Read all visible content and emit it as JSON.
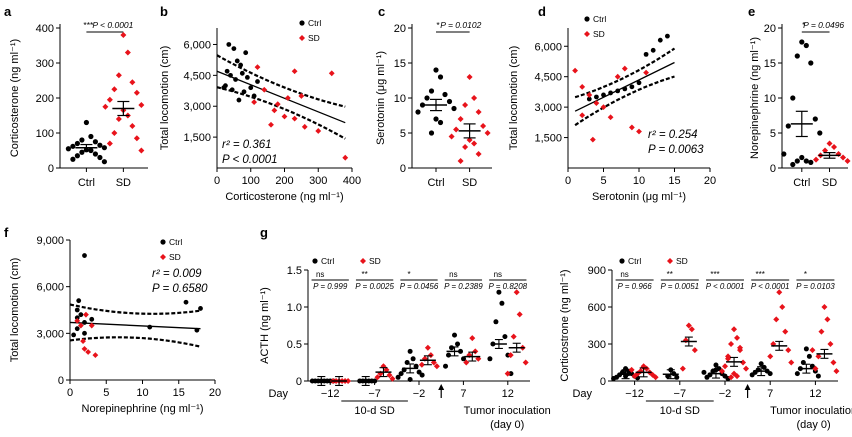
{
  "colors": {
    "ctrl": "#000000",
    "sd": "#e8131b",
    "ink": "#000000"
  },
  "chart_data": [
    {
      "panel": "a",
      "type": "scatter",
      "ylabel": "Corticosterone (ng ml⁻¹)",
      "categories": [
        "Ctrl",
        "SD"
      ],
      "yticks": [
        "0",
        "100",
        "200",
        "300",
        "400"
      ],
      "ylim": [
        0,
        400
      ],
      "stars": "***",
      "p": "P < 0.0001",
      "series": [
        {
          "name": "Ctrl",
          "mean": 58,
          "sem": 9,
          "values": [
            130,
            90,
            80,
            75,
            70,
            65,
            62,
            58,
            55,
            52,
            50,
            45,
            40,
            35,
            30,
            25,
            18
          ]
        },
        {
          "name": "SD",
          "mean": 170,
          "sem": 20,
          "values": [
            380,
            330,
            265,
            245,
            225,
            215,
            195,
            180,
            175,
            165,
            150,
            140,
            120,
            100,
            85,
            70,
            50
          ]
        }
      ]
    },
    {
      "panel": "b",
      "type": "scatter",
      "xlabel": "Corticosterone (ng ml⁻¹)",
      "ylabel": "Total locomotion (cm)",
      "xticks": [
        "0",
        "100",
        "200",
        "300",
        "400"
      ],
      "xlim": [
        0,
        400
      ],
      "yticks": [
        "1,500",
        "3,000",
        "4,500",
        "6,000"
      ],
      "ylim": [
        0,
        6800
      ],
      "legend": [
        "Ctrl",
        "SD"
      ],
      "stats": [
        "r² = 0.361",
        "P < 0.0001"
      ],
      "series": [
        {
          "name": "Ctrl",
          "points": [
            [
              35,
              6000
            ],
            [
              50,
              5800
            ],
            [
              60,
              5200
            ],
            [
              70,
              5000
            ],
            [
              30,
              4700
            ],
            [
              40,
              4500
            ],
            [
              55,
              4300
            ],
            [
              25,
              4000
            ],
            [
              45,
              3800
            ],
            [
              80,
              3700
            ],
            [
              90,
              4400
            ],
            [
              100,
              3900
            ],
            [
              65,
              3300
            ],
            [
              120,
              4200
            ],
            [
              85,
              5600
            ],
            [
              110,
              3500
            ],
            [
              20,
              3900
            ],
            [
              75,
              4600
            ]
          ]
        },
        {
          "name": "SD",
          "points": [
            [
              120,
              4900
            ],
            [
              230,
              4700
            ],
            [
              340,
              4600
            ],
            [
              140,
              3800
            ],
            [
              210,
              3400
            ],
            [
              250,
              3500
            ],
            [
              180,
              3100
            ],
            [
              170,
              2800
            ],
            [
              160,
              2100
            ],
            [
              260,
              2000
            ],
            [
              300,
              1800
            ],
            [
              380,
              500
            ],
            [
              200,
              2500
            ],
            [
              110,
              3200
            ],
            [
              230,
              2400
            ]
          ]
        }
      ],
      "fit": {
        "x": [
          0,
          380
        ],
        "y": [
          4700,
          2200
        ]
      }
    },
    {
      "panel": "c",
      "type": "scatter",
      "ylabel": "Serotonin (μg ml⁻¹)",
      "categories": [
        "Ctrl",
        "SD"
      ],
      "yticks": [
        "0",
        "5",
        "10",
        "15",
        "20"
      ],
      "ylim": [
        0,
        20
      ],
      "stars": "*",
      "p": "P = 0.0102",
      "series": [
        {
          "name": "Ctrl",
          "mean": 9,
          "sem": 0.8,
          "values": [
            14,
            13,
            11,
            10.5,
            10,
            9.5,
            9,
            8.5,
            8,
            7,
            6.5,
            5
          ]
        },
        {
          "name": "SD",
          "mean": 5.3,
          "sem": 1.0,
          "values": [
            13,
            10,
            9,
            8,
            7,
            6,
            5.5,
            5,
            4.5,
            4,
            3.5,
            3,
            2,
            1
          ]
        }
      ]
    },
    {
      "panel": "d",
      "type": "scatter",
      "xlabel": "Serotonin (μg ml⁻¹)",
      "ylabel": "Total locomotion (cm)",
      "xticks": [
        "0",
        "5",
        "10",
        "15",
        "20"
      ],
      "xlim": [
        0,
        20
      ],
      "yticks": [
        "1,500",
        "3,000",
        "4,500",
        "6,000"
      ],
      "ylim": [
        0,
        6900
      ],
      "legend": [
        "Ctrl",
        "SD"
      ],
      "stats": [
        "r² = 0.254",
        "P = 0.0063"
      ],
      "series": [
        {
          "name": "Ctrl",
          "points": [
            [
              14,
              6500
            ],
            [
              13,
              6300
            ],
            [
              12,
              5800
            ],
            [
              11,
              5600
            ],
            [
              10,
              4200
            ],
            [
              9,
              4000
            ],
            [
              8,
              3900
            ],
            [
              7,
              3800
            ],
            [
              6,
              3700
            ],
            [
              5,
              3600
            ],
            [
              4,
              3500
            ],
            [
              3,
              3400
            ]
          ]
        },
        {
          "name": "SD",
          "points": [
            [
              1,
              4800
            ],
            [
              2,
              4000
            ],
            [
              3,
              3600
            ],
            [
              4,
              3200
            ],
            [
              5,
              3000
            ],
            [
              6,
              2500
            ],
            [
              7,
              4500
            ],
            [
              8,
              4900
            ],
            [
              9,
              2000
            ],
            [
              10,
              1800
            ],
            [
              3.5,
              1400
            ],
            [
              2,
              2600
            ],
            [
              11,
              4700
            ]
          ]
        }
      ],
      "fit": {
        "x": [
          1,
          15
        ],
        "y": [
          2800,
          5200
        ]
      }
    },
    {
      "panel": "e",
      "type": "scatter",
      "ylabel": "Norepinephrine (ng ml⁻¹)",
      "categories": [
        "Ctrl",
        "SD"
      ],
      "yticks": [
        "0",
        "5",
        "10",
        "15",
        "20"
      ],
      "ylim": [
        0,
        20
      ],
      "stars": "*",
      "p": "P = 0.0496",
      "series": [
        {
          "name": "Ctrl",
          "mean": 6.3,
          "sem": 1.8,
          "values": [
            18,
            17.5,
            16,
            15,
            10,
            7,
            6,
            5,
            2,
            1.5,
            1,
            1,
            0.8,
            0.5
          ]
        },
        {
          "name": "SD",
          "mean": 1.8,
          "sem": 0.4,
          "values": [
            3.5,
            3,
            2.5,
            2,
            1.8,
            1.5,
            1.2,
            1
          ]
        }
      ]
    },
    {
      "panel": "f",
      "type": "scatter",
      "xlabel": "Norepinephrine (ng ml⁻¹)",
      "ylabel": "Total locomotion (cm)",
      "xticks": [
        "0",
        "5",
        "10",
        "15",
        "20"
      ],
      "xlim": [
        0,
        20
      ],
      "yticks": [
        "0",
        "3,000",
        "6,000",
        "9,000"
      ],
      "ylim": [
        0,
        9000
      ],
      "legend": [
        "Ctrl",
        "SD"
      ],
      "stats": [
        "r² = 0.009",
        "P = 0.6580"
      ],
      "series": [
        {
          "name": "Ctrl",
          "points": [
            [
              2,
              8000
            ],
            [
              1,
              4500
            ],
            [
              1.5,
              4200
            ],
            [
              2,
              3700
            ],
            [
              1,
              3300
            ],
            [
              2,
              3000
            ],
            [
              16,
              5000
            ],
            [
              18,
              4600
            ],
            [
              17.5,
              3200
            ],
            [
              11,
              3400
            ],
            [
              1,
              4000
            ],
            [
              3,
              3900
            ],
            [
              1.2,
              5100
            ],
            [
              0.5,
              2900
            ]
          ]
        },
        {
          "name": "SD",
          "points": [
            [
              1,
              3800
            ],
            [
              1.5,
              3500
            ],
            [
              2,
              2000
            ],
            [
              2.5,
              1800
            ],
            [
              3,
              3500
            ],
            [
              3.5,
              1600
            ],
            [
              1.8,
              2500
            ],
            [
              2.2,
              4200
            ]
          ]
        }
      ],
      "fit": {
        "x": [
          0,
          18
        ],
        "y": [
          3700,
          3300
        ]
      }
    },
    {
      "panel": "g",
      "type": "scatter",
      "ylabel": "ACTH (ng ml⁻¹)",
      "xticks": [
        "Day",
        "−12",
        "−7",
        "−2",
        "7",
        "12"
      ],
      "yticks": [
        "0",
        "0.5",
        "1.0",
        "1.5"
      ],
      "ylim": [
        0,
        1.5
      ],
      "legend": [
        "Ctrl",
        "SD"
      ],
      "bracket_labels": [
        "10-d SD",
        "Tumor inoculation",
        "(day 0)"
      ],
      "comparisons": [
        {
          "day": "−12",
          "sig": "ns",
          "p": "P = 0.999"
        },
        {
          "day": "−7",
          "sig": "**",
          "p": "P = 0.0025"
        },
        {
          "day": "−2",
          "sig": "*",
          "p": "P = 0.0456"
        },
        {
          "day": "7",
          "sig": "ns",
          "p": "P = 0.2389"
        },
        {
          "day": "12",
          "sig": "ns",
          "p": "P = 0.8208"
        }
      ],
      "series": [
        {
          "name": "Ctrl",
          "mean": [
            0.0,
            0.0,
            0.17,
            0.4,
            0.5
          ],
          "values": [
            [
              0,
              0,
              0,
              0,
              0,
              0,
              0,
              0
            ],
            [
              0,
              0,
              0,
              0,
              0,
              0
            ],
            [
              0.4,
              0.3,
              0.25,
              0.2,
              0.15,
              0.12,
              0.1,
              0.08,
              0.05,
              0.02
            ],
            [
              0.62,
              0.5,
              0.45,
              0.4,
              0.35,
              0.3,
              0.2
            ],
            [
              1.2,
              1.05,
              0.8,
              0.6,
              0.5,
              0.35,
              0.3,
              0.1
            ]
          ]
        },
        {
          "name": "SD",
          "mean": [
            0.0,
            0.12,
            0.28,
            0.33,
            0.45
          ],
          "values": [
            [
              0,
              0,
              0,
              0,
              0,
              0
            ],
            [
              0.2,
              0.15,
              0.1,
              0.08,
              0.05,
              0.03
            ],
            [
              0.45,
              0.35,
              0.3,
              0.25,
              0.22,
              0.2
            ],
            [
              0.58,
              0.4,
              0.35,
              0.3,
              0.25
            ],
            [
              1.2,
              0.9,
              0.6,
              0.45,
              0.35,
              0.25,
              0.1
            ]
          ]
        }
      ]
    },
    {
      "panel": "g2",
      "type": "scatter",
      "ylabel": "Corticostrone (ng ml⁻¹)",
      "xticks": [
        "Day",
        "−12",
        "−7",
        "−2",
        "7",
        "12"
      ],
      "yticks": [
        "0",
        "300",
        "600",
        "900"
      ],
      "ylim": [
        0,
        900
      ],
      "legend": [
        "Ctrl",
        "SD"
      ],
      "bracket_labels": [
        "10-d SD",
        "Tumor inoculation",
        "(day 0)"
      ],
      "comparisons": [
        {
          "day": "−12",
          "sig": "ns",
          "p": "P = 0.966"
        },
        {
          "day": "−7",
          "sig": "**",
          "p": "P = 0.0051"
        },
        {
          "day": "−2",
          "sig": "***",
          "p": "P < 0.0001"
        },
        {
          "day": "7",
          "sig": "***",
          "p": "P < 0.0001"
        },
        {
          "day": "12",
          "sig": "*",
          "p": "P = 0.0103"
        }
      ],
      "series": [
        {
          "name": "Ctrl",
          "mean": [
            55,
            55,
            60,
            80,
            100
          ],
          "values": [
            [
              100,
              80,
              70,
              60,
              50,
              40,
              30,
              25,
              20,
              40,
              60,
              70
            ],
            [
              90,
              60,
              40,
              30
            ],
            [
              130,
              100,
              80,
              60,
              50,
              40,
              30,
              20,
              70,
              90
            ],
            [
              140,
              110,
              90,
              80,
              70,
              60,
              50
            ],
            [
              260,
              200,
              150,
              120,
              100,
              80,
              60,
              40
            ]
          ]
        },
        {
          "name": "SD",
          "mean": [
            70,
            320,
            155,
            285,
            220
          ],
          "values": [
            [
              120,
              100,
              80,
              70,
              60,
              50,
              40,
              30,
              90,
              110
            ],
            [
              450,
              420,
              330,
              250,
              100
            ],
            [
              420,
              350,
              300,
              250,
              200,
              150,
              120,
              100,
              80,
              60,
              40,
              30,
              270,
              180
            ],
            [
              720,
              600,
              500,
              400,
              300,
              250,
              200,
              150
            ],
            [
              600,
              500,
              400,
              300,
              200,
              150,
              100,
              80,
              250
            ]
          ]
        }
      ]
    }
  ]
}
